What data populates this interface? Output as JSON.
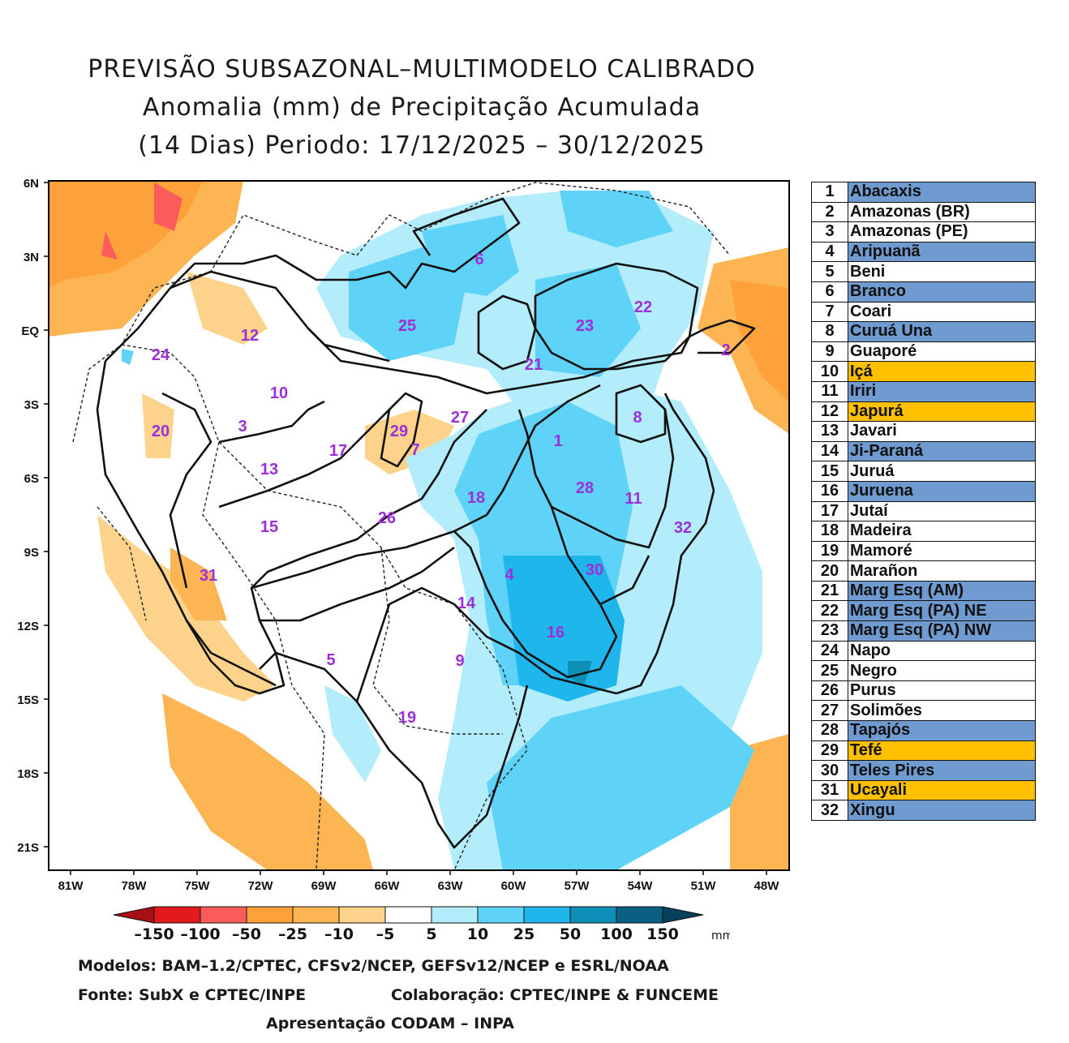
{
  "title": {
    "line1": "PREVISÃO SUBSAZONAL–MULTIMODELO CALIBRADO",
    "line2": "Anomalia (mm) de Precipitação Acumulada",
    "line3": "(14 Dias) Periodo: 17/12/2025 – 30/12/2025"
  },
  "map": {
    "lat_ticks": [
      "6N",
      "3N",
      "EQ",
      "3S",
      "6S",
      "9S",
      "12S",
      "15S",
      "18S",
      "21S"
    ],
    "lon_ticks": [
      "81W",
      "78W",
      "75W",
      "72W",
      "69W",
      "66W",
      "63W",
      "60W",
      "57W",
      "54W",
      "51W",
      "48W"
    ],
    "basin_labels": [
      "1",
      "2",
      "3",
      "4",
      "5",
      "6",
      "7",
      "8",
      "9",
      "10",
      "11",
      "12",
      "13",
      "14",
      "15",
      "16",
      "17",
      "18",
      "19",
      "20",
      "21",
      "22",
      "23",
      "24",
      "25",
      "26",
      "27",
      "28",
      "29",
      "30",
      "31",
      "32"
    ]
  },
  "basins": [
    {
      "num": "1",
      "name": "Abacaxis",
      "color": "#6f9bd1"
    },
    {
      "num": "2",
      "name": "Amazonas (BR)",
      "color": "#ffffff"
    },
    {
      "num": "3",
      "name": "Amazonas (PE)",
      "color": "#ffffff"
    },
    {
      "num": "4",
      "name": "Aripuanã",
      "color": "#6f9bd1"
    },
    {
      "num": "5",
      "name": "Beni",
      "color": "#ffffff"
    },
    {
      "num": "6",
      "name": "Branco",
      "color": "#6f9bd1"
    },
    {
      "num": "7",
      "name": "Coari",
      "color": "#ffffff"
    },
    {
      "num": "8",
      "name": "Curuá Una",
      "color": "#6f9bd1"
    },
    {
      "num": "9",
      "name": "Guaporé",
      "color": "#ffffff"
    },
    {
      "num": "10",
      "name": "Içá",
      "color": "#ffc000"
    },
    {
      "num": "11",
      "name": "Iriri",
      "color": "#6f9bd1"
    },
    {
      "num": "12",
      "name": "Japurá",
      "color": "#ffc000"
    },
    {
      "num": "13",
      "name": "Javari",
      "color": "#ffffff"
    },
    {
      "num": "14",
      "name": "Ji-Paraná",
      "color": "#6f9bd1"
    },
    {
      "num": "15",
      "name": "Juruá",
      "color": "#ffffff"
    },
    {
      "num": "16",
      "name": "Juruena",
      "color": "#6f9bd1"
    },
    {
      "num": "17",
      "name": "Jutaí",
      "color": "#ffffff"
    },
    {
      "num": "18",
      "name": "Madeira",
      "color": "#ffffff"
    },
    {
      "num": "19",
      "name": "Mamoré",
      "color": "#ffffff"
    },
    {
      "num": "20",
      "name": "Marañon",
      "color": "#ffffff"
    },
    {
      "num": "21",
      "name": "Marg Esq (AM)",
      "color": "#6f9bd1"
    },
    {
      "num": "22",
      "name": "Marg Esq (PA) NE",
      "color": "#6f9bd1"
    },
    {
      "num": "23",
      "name": "Marg Esq (PA) NW",
      "color": "#6f9bd1"
    },
    {
      "num": "24",
      "name": "Napo",
      "color": "#ffffff"
    },
    {
      "num": "25",
      "name": "Negro",
      "color": "#ffffff"
    },
    {
      "num": "26",
      "name": "Purus",
      "color": "#ffffff"
    },
    {
      "num": "27",
      "name": "Solimões",
      "color": "#ffffff"
    },
    {
      "num": "28",
      "name": "Tapajós",
      "color": "#6f9bd1"
    },
    {
      "num": "29",
      "name": "Tefé",
      "color": "#ffc000"
    },
    {
      "num": "30",
      "name": "Teles Pires",
      "color": "#6f9bd1"
    },
    {
      "num": "31",
      "name": "Ucayali",
      "color": "#ffc000"
    },
    {
      "num": "32",
      "name": "Xingu",
      "color": "#6f9bd1"
    }
  ],
  "colorbar": {
    "labels": [
      "–150",
      "–100",
      "–50",
      "–25",
      "–10",
      "–5",
      "5",
      "10",
      "25",
      "50",
      "100",
      "150"
    ],
    "unit": "mm",
    "colors": [
      "#a50f15",
      "#e31a1c",
      "#fc5b5b",
      "#fda13a",
      "#fdb553",
      "#fdd28a",
      "#ffffff",
      "#b3ecfb",
      "#5fd3f7",
      "#1fb6ec",
      "#0e8fb8",
      "#0b5f82",
      "#06405a"
    ]
  },
  "footer": {
    "models": "Modelos: BAM–1.2/CPTEC, CFSv2/NCEP, GEFSv12/NCEP e ESRL/NOAA",
    "source": "Fonte: SubX e CPTEC/INPE",
    "collab": "Colaboração: CPTEC/INPE & FUNCEME",
    "presentation": "Apresentação CODAM – INPA"
  }
}
